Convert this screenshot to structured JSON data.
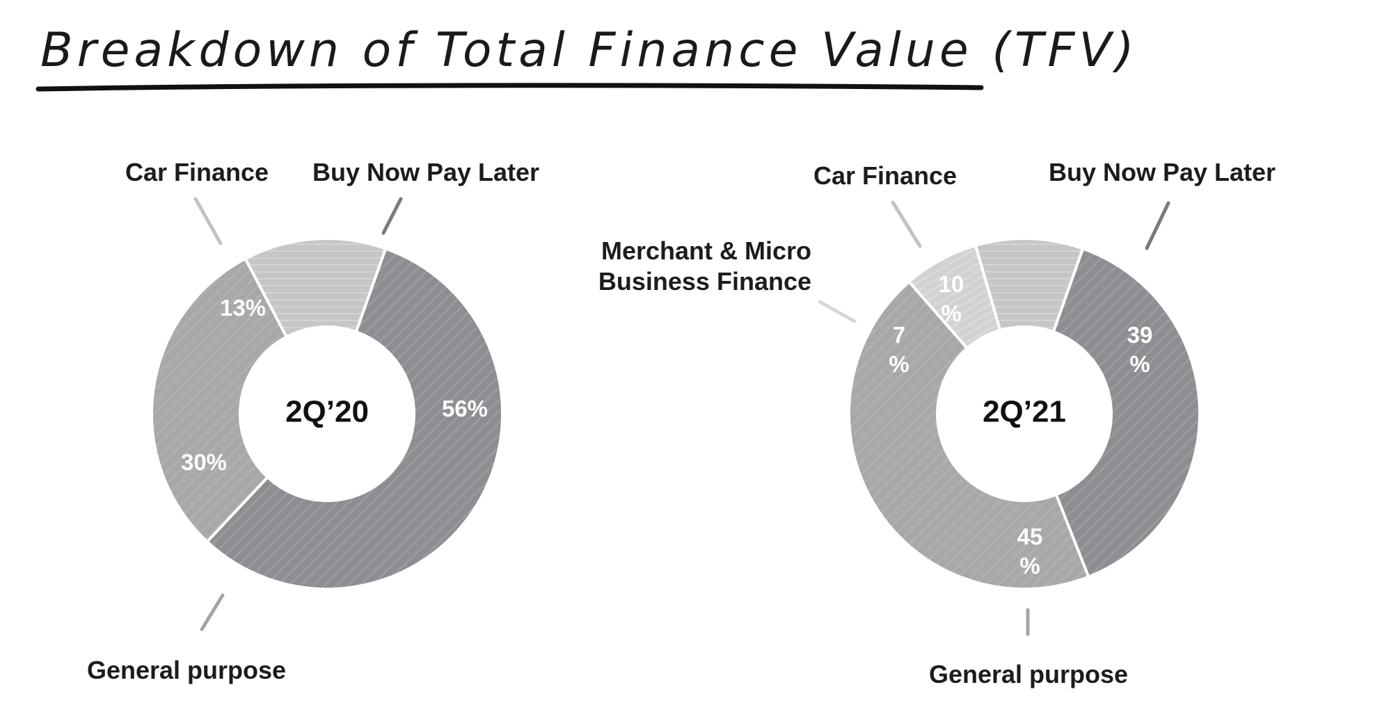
{
  "title": "Breakdown of Total Finance Value (TFV)",
  "chart_data": [
    {
      "type": "pie",
      "center_label": "2Q’20",
      "slices": [
        {
          "label": "Buy Now Pay Later",
          "value": 56,
          "value_label": "56%",
          "color": "#8e8e92"
        },
        {
          "label": "General purpose",
          "value": 30,
          "value_label": "30%",
          "color": "#a8a8a8"
        },
        {
          "label": "Car Finance",
          "value": 13,
          "value_label": "13%",
          "color": "#c6c6c8"
        }
      ]
    },
    {
      "type": "pie",
      "center_label": "2Q’21",
      "slices": [
        {
          "label": "Buy Now Pay Later",
          "value": 39,
          "value_label": "39\n%",
          "color": "#8e8e92"
        },
        {
          "label": "General purpose",
          "value": 45,
          "value_label": "45\n%",
          "color": "#a8a8a8"
        },
        {
          "label": "Merchant & Micro\nBusiness Finance",
          "value": 7,
          "value_label": "7\n%",
          "color": "#d2d2d4"
        },
        {
          "label": "Car Finance",
          "value": 10,
          "value_label": "10\n%",
          "color": "#c6c6c8"
        }
      ]
    }
  ]
}
